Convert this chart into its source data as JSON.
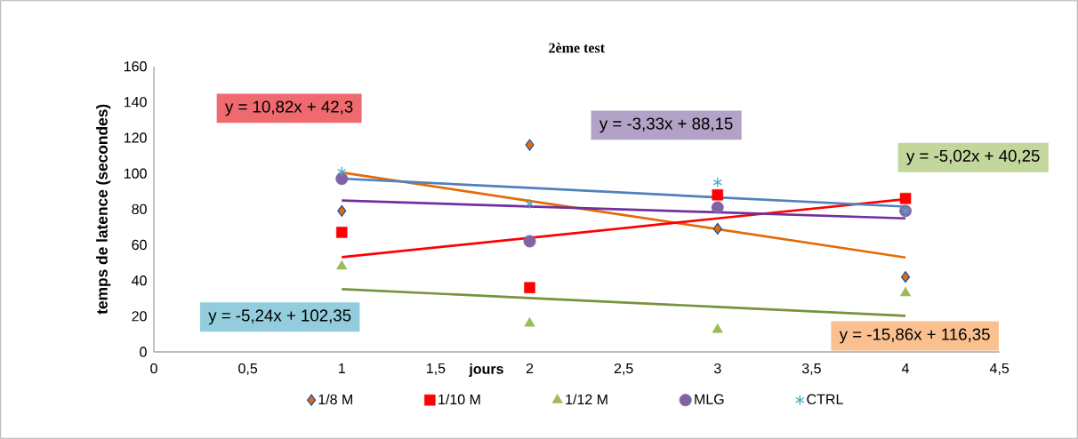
{
  "chart_data": {
    "type": "scatter",
    "title": "2ème test",
    "xlabel": "jours",
    "ylabel": "temps de latence (secondes)",
    "xlim": [
      0,
      4.5
    ],
    "ylim": [
      0,
      160
    ],
    "xticks": [
      0,
      {
        "value": 0.5,
        "label": "0,5"
      },
      1,
      {
        "value": 1.5,
        "label": "1,5"
      },
      2,
      {
        "value": 2.5,
        "label": "2,5"
      },
      3,
      {
        "value": 3.5,
        "label": "3,5"
      },
      4,
      {
        "value": 4.5,
        "label": "4,5"
      }
    ],
    "yticks": [
      0,
      20,
      40,
      60,
      80,
      100,
      120,
      140,
      160
    ],
    "legend": "bottom",
    "grid": false,
    "x": [
      1,
      2,
      3,
      4
    ],
    "series": [
      {
        "name": "1/8 M",
        "color": "#e36c09",
        "marker": "diamond",
        "values": [
          79,
          116,
          69,
          42
        ]
      },
      {
        "name": "1/10 M",
        "color": "#ff0000",
        "marker": "square",
        "values": [
          67,
          36,
          88,
          86
        ]
      },
      {
        "name": "1/12 M",
        "color": "#9bbb59",
        "marker": "triangle",
        "values": [
          48,
          16,
          12.5,
          33
        ]
      },
      {
        "name": "MLG",
        "color": "#8064a2",
        "marker": "circle",
        "values": [
          97,
          62,
          81,
          79
        ]
      },
      {
        "name": "CTRL",
        "color": "#4bacc6",
        "marker": "cross",
        "values": [
          101,
          83,
          95,
          79
        ]
      },
      {
        "type": "line",
        "color": "#e36c09",
        "marker": "none",
        "values": [
          100.5,
          84.6,
          68.8,
          52.9
        ]
      },
      {
        "type": "line",
        "color": "#ff0000",
        "marker": "none",
        "values": [
          53.1,
          63.9,
          74.8,
          85.6
        ]
      },
      {
        "type": "line",
        "color": "#77933c",
        "marker": "none",
        "values": [
          35.2,
          30.2,
          25.2,
          20.2
        ]
      },
      {
        "type": "line",
        "color": "#7030a0",
        "marker": "none",
        "values": [
          84.8,
          81.5,
          78.2,
          74.8
        ]
      },
      {
        "type": "line",
        "color": "#4f81bd",
        "marker": "none",
        "values": [
          97.1,
          91.9,
          86.6,
          81.4
        ]
      }
    ],
    "annotations": [
      "y = 10,82x + 42,3",
      "y = -5,24x + 102,35",
      "y = -3,33x + 88,15",
      "y = -5,02x + 40,25",
      "y = -15,86x + 116,35"
    ]
  }
}
